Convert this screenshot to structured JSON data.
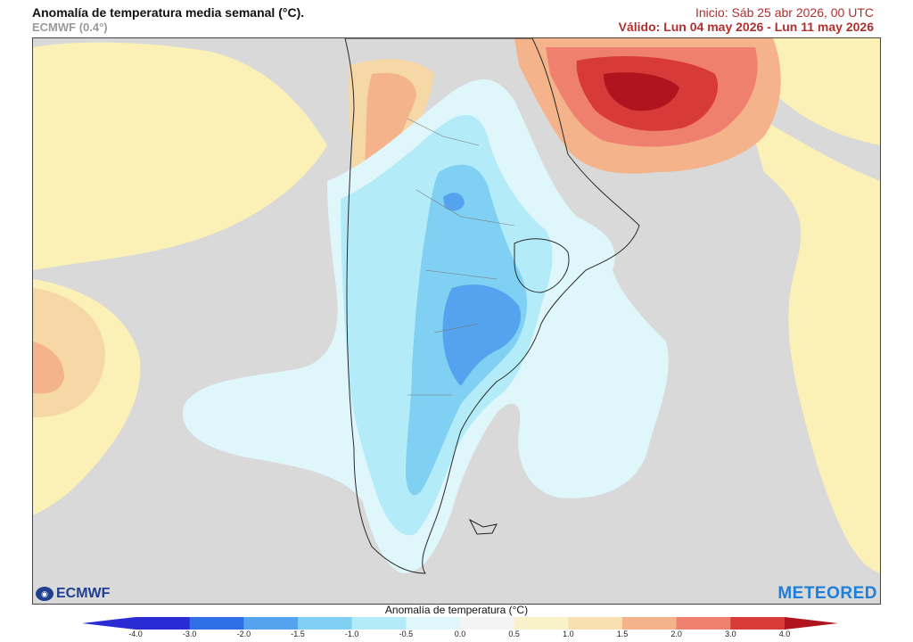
{
  "header": {
    "title": "Anomalía de temperatura media semanal (°C).",
    "model": "ECMWF (0.4°)",
    "init": "Inicio: Sáb 25 abr 2026, 00 UTC",
    "valid": "Válido: Lun 04 may 2026 - Lun 11 may 2026"
  },
  "logos": {
    "left": "ECMWF",
    "right": "METEORED"
  },
  "colorbar": {
    "label": "Anomalía de temperatura (°C)",
    "ticks": [
      "-4.0",
      "-3.0",
      "-2.0",
      "-1.5",
      "-1.0",
      "-0.5",
      "0.0",
      "0.5",
      "1.0",
      "1.5",
      "2.0",
      "3.0",
      "4.0"
    ],
    "colors": [
      "#2b2bd6",
      "#2f6fe6",
      "#55a3ee",
      "#7fd0f2",
      "#b3ecf8",
      "#dff6fb",
      "#f4f4f4",
      "#f9f1c8",
      "#f8deb0",
      "#f4b38a",
      "#ef8070",
      "#d83a3a",
      "#b0151f"
    ]
  },
  "palette": {
    "neutral": "#d9d9d9",
    "warm_1": "#fbf0b5",
    "warm_2": "#f6d7a6"
  }
}
